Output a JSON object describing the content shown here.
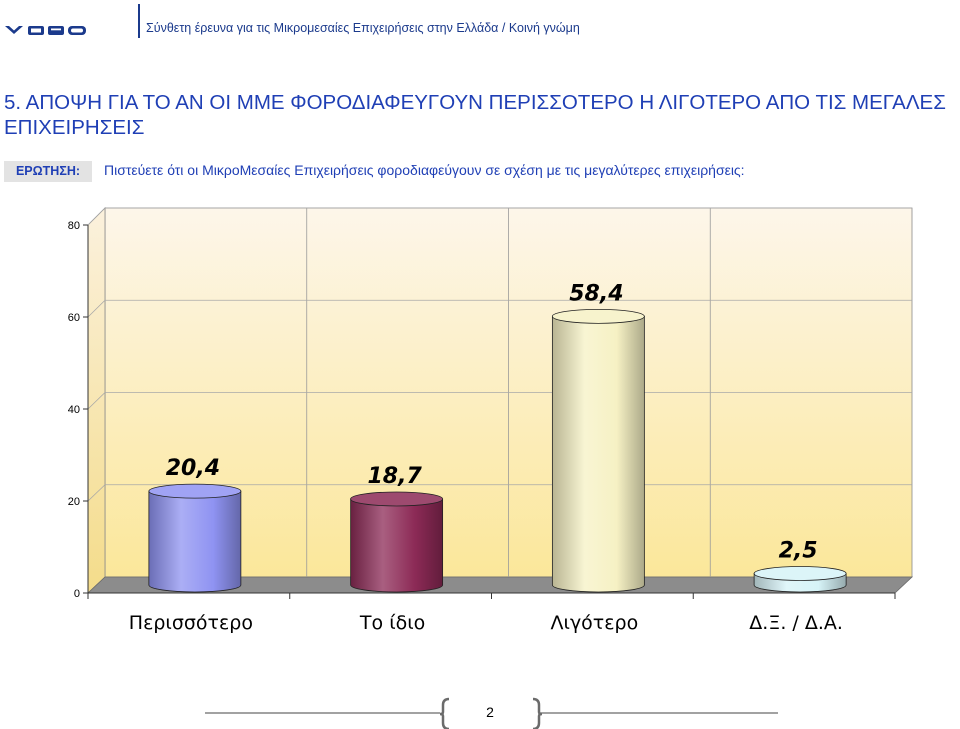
{
  "header": {
    "logo_text": "GPO",
    "subtitle": "Σύνθετη έρευνα για τις Μικρομεσαίες Επιχειρήσεις στην Ελλάδα  / Κοινή γνώμη"
  },
  "section": {
    "title": "5.  ΑΠΟΨΗ ΓΙΑ ΤΟ ΑΝ ΟΙ ΜΜΕ ΦΟΡΟΔΙΑΦΕΥΓΟΥΝ ΠΕΡΙΣΣΟΤΕΡΟ Η ΛΙΓΟΤΕΡΟ ΑΠΟ ΤΙΣ ΜΕΓΑΛΕΣ ΕΠΙΧΕΙΡΗΣΕΙΣ"
  },
  "question": {
    "label": "ΕΡΩΤΗΣΗ:",
    "text": "Πιστεύετε ότι οι ΜικροΜεσαίες Επιχειρήσεις φοροδιαφεύγουν σε σχέση με τις μεγαλύτερες επιχειρήσεις:"
  },
  "chart_data": {
    "type": "bar",
    "style": "3d-cylinder",
    "categories": [
      "Περισσότερο",
      "Το ίδιο",
      "Λιγότερο",
      "Δ.Ξ. / Δ.Α."
    ],
    "values": [
      20.4,
      18.7,
      58.4,
      2.5
    ],
    "value_labels": [
      "20,4",
      "18,7",
      "58,4",
      "2,5"
    ],
    "ylim": [
      0,
      80
    ],
    "yticks": [
      "0",
      "20",
      "40",
      "60",
      "80"
    ],
    "grid": true,
    "legend": "none",
    "bar_colors": [
      "#8f93f2",
      "#8c2a56",
      "#f6f1c4",
      "#d6f3f7"
    ]
  },
  "footer": {
    "page_number": "2"
  }
}
